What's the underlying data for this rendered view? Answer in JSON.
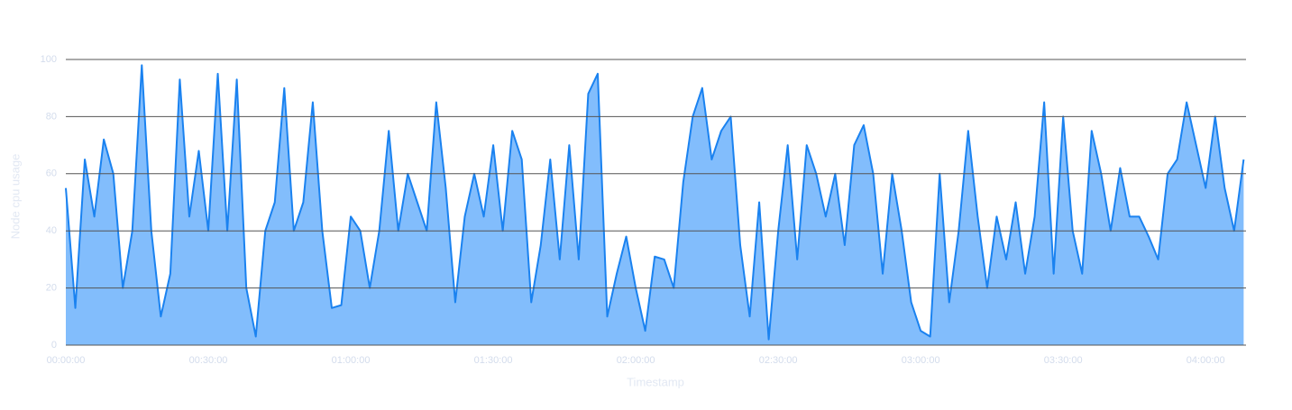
{
  "chart_data": {
    "type": "area",
    "xlabel": "Timestamp",
    "ylabel": "Node cpu usage",
    "x": [
      "00:00:00",
      "00:02:00",
      "00:04:00",
      "00:06:00",
      "00:08:00",
      "00:10:00",
      "00:12:00",
      "00:14:00",
      "00:16:00",
      "00:18:00",
      "00:20:00",
      "00:22:00",
      "00:24:00",
      "00:26:00",
      "00:28:00",
      "00:30:00",
      "00:32:00",
      "00:34:00",
      "00:36:00",
      "00:38:00",
      "00:40:00",
      "00:42:00",
      "00:44:00",
      "00:46:00",
      "00:48:00",
      "00:50:00",
      "00:52:00",
      "00:54:00",
      "00:56:00",
      "00:58:00",
      "01:00:00",
      "01:02:00",
      "01:04:00",
      "01:06:00",
      "01:08:00",
      "01:10:00",
      "01:12:00",
      "01:14:00",
      "01:16:00",
      "01:18:00",
      "01:20:00",
      "01:22:00",
      "01:24:00",
      "01:26:00",
      "01:28:00",
      "01:30:00",
      "01:32:00",
      "01:34:00",
      "01:36:00",
      "01:38:00",
      "01:40:00",
      "01:42:00",
      "01:44:00",
      "01:46:00",
      "01:48:00",
      "01:50:00",
      "01:52:00",
      "01:54:00",
      "01:56:00",
      "01:58:00",
      "02:00:00",
      "02:02:00",
      "02:04:00",
      "02:06:00",
      "02:08:00",
      "02:10:00",
      "02:12:00",
      "02:14:00",
      "02:16:00",
      "02:18:00",
      "02:20:00",
      "02:22:00",
      "02:24:00",
      "02:26:00",
      "02:28:00",
      "02:30:00",
      "02:32:00",
      "02:34:00",
      "02:36:00",
      "02:38:00",
      "02:40:00",
      "02:42:00",
      "02:44:00",
      "02:46:00",
      "02:48:00",
      "02:50:00",
      "02:52:00",
      "02:54:00",
      "02:56:00",
      "02:58:00",
      "03:00:00",
      "03:02:00",
      "03:04:00",
      "03:06:00",
      "03:08:00",
      "03:10:00",
      "03:12:00",
      "03:14:00",
      "03:16:00",
      "03:18:00",
      "03:20:00",
      "03:22:00",
      "03:24:00",
      "03:26:00",
      "03:28:00",
      "03:30:00",
      "03:32:00",
      "03:34:00",
      "03:36:00",
      "03:38:00",
      "03:40:00",
      "03:42:00",
      "03:44:00",
      "03:46:00",
      "03:48:00",
      "03:50:00",
      "03:52:00",
      "03:54:00",
      "03:56:00",
      "03:58:00",
      "04:00:00",
      "04:02:00",
      "04:04:00",
      "04:06:00",
      "04:08:00"
    ],
    "values": [
      55,
      13,
      65,
      45,
      72,
      60,
      20,
      40,
      98,
      40,
      10,
      25,
      93,
      45,
      68,
      40,
      95,
      40,
      93,
      20,
      3,
      40,
      50,
      90,
      40,
      50,
      85,
      40,
      13,
      14,
      45,
      40,
      20,
      40,
      75,
      40,
      60,
      50,
      40,
      85,
      55,
      15,
      45,
      60,
      45,
      70,
      40,
      75,
      65,
      15,
      35,
      65,
      30,
      70,
      30,
      88,
      95,
      10,
      25,
      38,
      20,
      5,
      31,
      30,
      20,
      57,
      80,
      90,
      65,
      75,
      80,
      35,
      10,
      50,
      2,
      40,
      70,
      30,
      70,
      60,
      45,
      60,
      35,
      70,
      77,
      60,
      25,
      60,
      40,
      15,
      5,
      3,
      60,
      15,
      40,
      75,
      45,
      20,
      45,
      30,
      50,
      25,
      45,
      85,
      25,
      80,
      40,
      25,
      75,
      60,
      40,
      62,
      45,
      45,
      38,
      30,
      60,
      65,
      85,
      70,
      55,
      80,
      55,
      40,
      65
    ],
    "color": "#1a82f0",
    "fill": "#82bdfc",
    "xlim": [
      "00:00:00",
      "04:08:30"
    ],
    "xticks": [
      "00:00:00",
      "00:30:00",
      "01:00:00",
      "01:30:00",
      "02:00:00",
      "02:30:00",
      "03:00:00",
      "03:30:00",
      "04:00:00"
    ],
    "ylim": [
      0,
      100
    ],
    "yticks": [
      0,
      20,
      40,
      60,
      80,
      100
    ],
    "grid": true
  }
}
